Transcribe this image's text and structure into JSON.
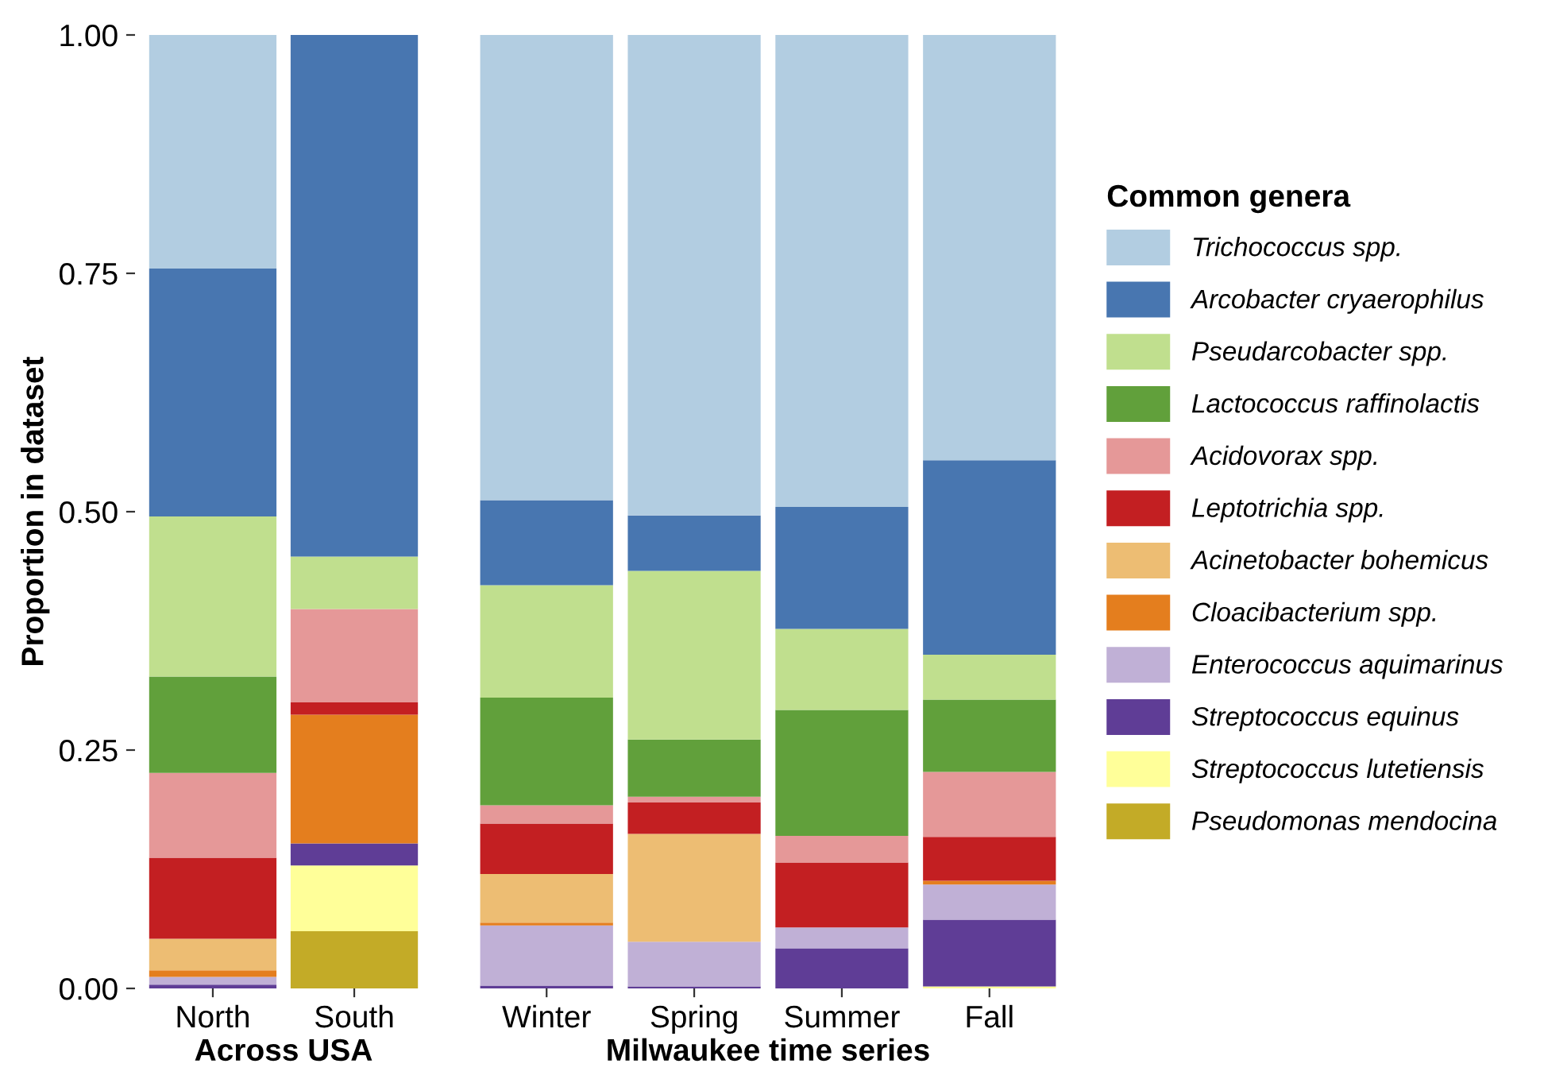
{
  "chart_data": [
    {
      "type": "bar",
      "stacked": true,
      "categories": [
        "North",
        "South"
      ],
      "xlabel": "Across USA",
      "ylabel": "Proportion in dataset",
      "ylim": [
        0,
        1
      ],
      "yticks": [
        {
          "value": 0,
          "label": "0.00"
        },
        {
          "value": 0.25,
          "label": "0.25"
        },
        {
          "value": 0.5,
          "label": "0.50"
        },
        {
          "value": 0.75,
          "label": "0.75"
        },
        {
          "value": 1,
          "label": "1.00"
        }
      ],
      "grid": false,
      "series": [
        {
          "color": "#c3ab27",
          "values": [
            0,
            0.06
          ]
        },
        {
          "color": "#ffff99",
          "values": [
            0,
            0.069
          ]
        },
        {
          "color": "#5f3d96",
          "values": [
            0.004,
            0.023
          ]
        },
        {
          "color": "#c0b0d6",
          "values": [
            0.008,
            0
          ]
        },
        {
          "color": "#e47e1e",
          "values": [
            0.007,
            0.135
          ]
        },
        {
          "color": "#edbd73",
          "values": [
            0.033,
            0
          ]
        },
        {
          "color": "#c31f22",
          "values": [
            0.085,
            0.013
          ]
        },
        {
          "color": "#e59898",
          "values": [
            0.089,
            0.098
          ]
        },
        {
          "color": "#61a03b",
          "values": [
            0.101,
            0
          ]
        },
        {
          "color": "#c0df8e",
          "values": [
            0.168,
            0.055
          ]
        },
        {
          "color": "#4876b0",
          "values": [
            0.26,
            0.547
          ]
        },
        {
          "color": "#b2cde1",
          "values": [
            0.245,
            0
          ]
        }
      ]
    },
    {
      "type": "bar",
      "stacked": true,
      "categories": [
        "Winter",
        "Spring",
        "Summer",
        "Fall"
      ],
      "xlabel": "Milwaukee time series",
      "ylim": [
        0,
        1
      ],
      "tick_labels": "x",
      "grid": false,
      "legend": "right",
      "legend_title": "Common genera",
      "series": [
        {
          "name": "Pseudomonas mendocina",
          "color": "#c3ab27",
          "values": [
            0,
            0,
            0,
            0
          ]
        },
        {
          "name": "Streptococcus lutetiensis",
          "color": "#ffff99",
          "values": [
            0,
            0,
            0,
            0.002
          ]
        },
        {
          "name": "Streptococcus equinus",
          "color": "#5f3d96",
          "values": [
            0.003,
            0.002,
            0.042,
            0.07
          ]
        },
        {
          "name": "Enterococcus aquimarinus",
          "color": "#c0b0d6",
          "values": [
            0.063,
            0.047,
            0.022,
            0.037
          ]
        },
        {
          "name": "Cloacibacterium spp.",
          "color": "#e47e1e",
          "values": [
            0.003,
            0,
            0,
            0.004
          ]
        },
        {
          "name": "Acinetobacter bohemicus",
          "color": "#edbd73",
          "values": [
            0.051,
            0.113,
            0,
            0
          ]
        },
        {
          "name": "Leptotrichia spp.",
          "color": "#c31f22",
          "values": [
            0.053,
            0.033,
            0.068,
            0.046
          ]
        },
        {
          "name": "Acidovorax spp.",
          "color": "#e59898",
          "values": [
            0.019,
            0.006,
            0.028,
            0.068
          ]
        },
        {
          "name": "Lactococcus raffinolactis",
          "color": "#61a03b",
          "values": [
            0.113,
            0.06,
            0.132,
            0.076
          ]
        },
        {
          "name": "Pseudarcobacter spp.",
          "color": "#c0df8e",
          "values": [
            0.118,
            0.177,
            0.085,
            0.047
          ]
        },
        {
          "name": "Arcobacter cryaerophilus",
          "color": "#4876b0",
          "values": [
            0.089,
            0.058,
            0.128,
            0.204
          ]
        },
        {
          "name": "Trichococcus spp.",
          "color": "#b2cde1",
          "values": [
            0.488,
            0.504,
            0.495,
            0.446
          ]
        }
      ]
    }
  ]
}
